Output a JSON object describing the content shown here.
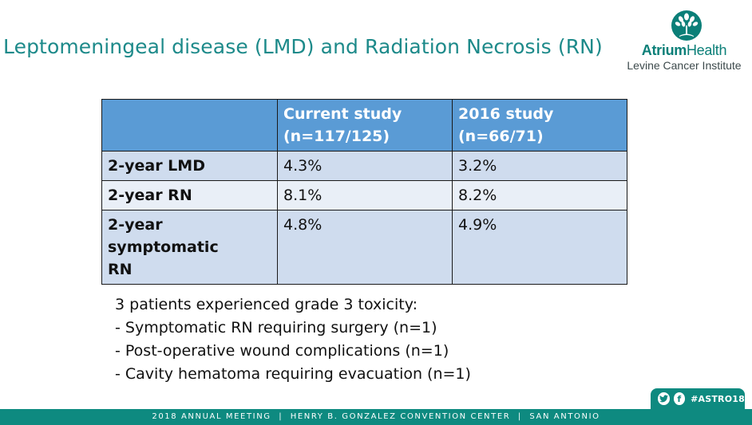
{
  "slide": {
    "title": "Leptomeningeal disease (LMD) and Radiation Necrosis (RN)"
  },
  "logo": {
    "brand_bold": "Atrium",
    "brand_regular": "Health",
    "subtitle": "Levine Cancer Institute",
    "icon": "tree-of-life-icon",
    "color": "#0b7f78"
  },
  "table": {
    "headers": [
      "",
      "Current study\n(n=117/125)",
      "2016 study\n(n=66/71)"
    ],
    "header_lines": [
      [
        "Current study",
        "(n=117/125)"
      ],
      [
        "2016 study",
        "(n=66/71)"
      ]
    ],
    "rows": [
      {
        "label": "2-year LMD",
        "current": "4.3%",
        "prior": "3.2%"
      },
      {
        "label": "2-year RN",
        "current": "8.1%",
        "prior": "8.2%"
      },
      {
        "label_lines": [
          "2-year symptomatic",
          "RN"
        ],
        "current": "4.8%",
        "prior": "4.9%"
      }
    ],
    "colors": {
      "header": "#5a9bd5",
      "row_dark": "#cfdcee",
      "row_light": "#e9eff7"
    }
  },
  "notes": {
    "lines": [
      "3 patients experienced grade 3 toxicity:",
      "- Symptomatic RN requiring surgery (n=1)",
      "- Post-operative wound complications (n=1)",
      "- Cavity hematoma requiring evacuation (n=1)"
    ]
  },
  "social": {
    "icons": [
      "twitter-icon",
      "facebook-icon"
    ],
    "hashtag": "#ASTRO18"
  },
  "footer": {
    "text": "2018 ANNUAL MEETING  |  HENRY B. GONZALEZ CONVENTION CENTER  |  SAN ANTONIO",
    "color": "#0e8a80"
  }
}
